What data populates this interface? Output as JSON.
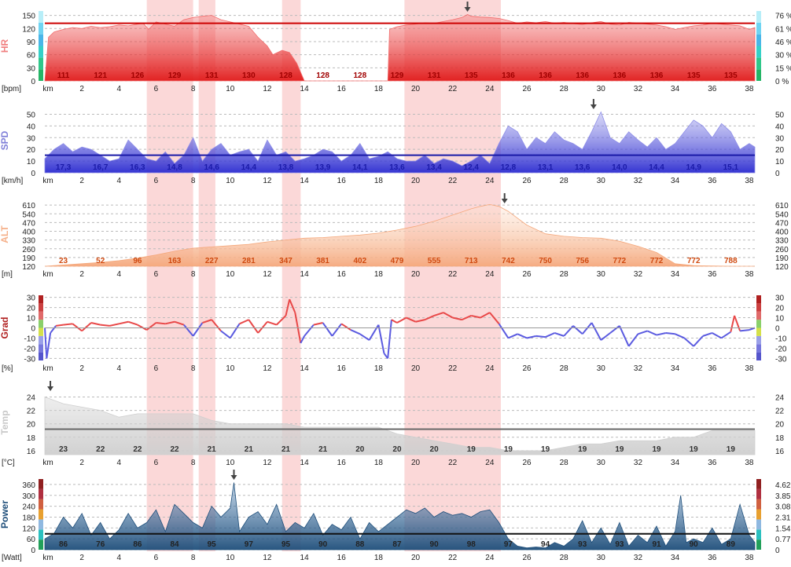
{
  "chart_data": [
    {
      "key": "hr",
      "type": "area",
      "ylabel": "HR",
      "unit": "[bpm]",
      "xlabel": "km",
      "xlim": [
        0,
        38.3
      ],
      "ylim": [
        0,
        160
      ],
      "left_ticks": [
        "0",
        "30",
        "60",
        "90",
        "120",
        "150"
      ],
      "right_ticks": [
        "0 %",
        "15 %",
        "30 %",
        "46 %",
        "61 %",
        "76 %"
      ],
      "mean_line": 132,
      "marker_km": 22.8,
      "segment_labels": [
        "111",
        "121",
        "126",
        "129",
        "131",
        "130",
        "128",
        "128",
        "128",
        "129",
        "131",
        "135",
        "136",
        "136",
        "136",
        "136",
        "136",
        "135",
        "135"
      ],
      "series": [
        {
          "x": [
            0,
            0.2,
            0.5,
            1,
            1.5,
            2,
            2.5,
            3,
            3.5,
            4,
            4.5,
            5,
            5.3,
            5.6,
            6,
            6.5,
            7,
            7.5,
            8,
            8.5,
            9,
            9.5,
            10,
            10.5,
            11,
            11.5,
            12,
            12.3,
            12.8,
            13.2,
            13.6,
            14,
            15,
            16,
            17,
            18,
            18.5,
            18.6,
            19,
            19.5,
            20,
            20.5,
            21,
            21.5,
            22,
            22.5,
            22.8,
            23,
            23.5,
            24,
            24.5,
            25,
            25.5,
            26,
            26.5,
            27,
            27.5,
            28,
            28.5,
            29,
            29.5,
            30,
            30.5,
            31,
            31.5,
            32,
            32.5,
            33,
            33.5,
            34,
            34.5,
            35,
            35.5,
            36,
            36.5,
            37,
            37.5,
            38,
            38.3
          ],
          "values": [
            0,
            100,
            112,
            118,
            122,
            120,
            125,
            122,
            124,
            128,
            126,
            130,
            132,
            118,
            135,
            130,
            125,
            140,
            145,
            148,
            150,
            140,
            135,
            130,
            125,
            100,
            80,
            60,
            70,
            65,
            40,
            0,
            0,
            0,
            0,
            0,
            0,
            118,
            124,
            128,
            130,
            133,
            132,
            136,
            140,
            145,
            152,
            148,
            146,
            145,
            143,
            138,
            132,
            135,
            133,
            136,
            132,
            134,
            131,
            129,
            133,
            136,
            130,
            128,
            134,
            132,
            130,
            128,
            124,
            118,
            122,
            126,
            128,
            132,
            130,
            128,
            126,
            118,
            122
          ]
        }
      ]
    },
    {
      "key": "spd",
      "type": "area",
      "ylabel": "SPD",
      "unit": "[km/h]",
      "xlabel": "km",
      "xlim": [
        0,
        38.3
      ],
      "ylim": [
        0,
        55
      ],
      "left_ticks": [
        "0",
        "10",
        "20",
        "30",
        "40",
        "50"
      ],
      "right_ticks": [
        "0",
        "10",
        "20",
        "30",
        "40",
        "50"
      ],
      "mean_line": 15,
      "marker_km": 29.6,
      "segment_labels": [
        "17,3",
        "16,7",
        "16,3",
        "14,8",
        "14,6",
        "14,4",
        "13,8",
        "13,9",
        "14,1",
        "13,6",
        "13,4",
        "12,4",
        "12,8",
        "13,1",
        "13,6",
        "14,0",
        "14,4",
        "14,9",
        "15,1"
      ],
      "series": [
        {
          "x": [
            0,
            0.5,
            1,
            1.5,
            2,
            2.5,
            3,
            3.5,
            4,
            4.5,
            5,
            5.5,
            6,
            6.5,
            7,
            7.5,
            8,
            8.5,
            9,
            9.5,
            10,
            10.5,
            11,
            11.5,
            12,
            12.5,
            13,
            13.5,
            14,
            14.5,
            15,
            15.5,
            16,
            16.5,
            17,
            17.5,
            18,
            18.5,
            19,
            19.5,
            20,
            20.5,
            21,
            21.5,
            22,
            22.5,
            23,
            23.5,
            24,
            24.5,
            25,
            25.5,
            26,
            26.5,
            27,
            27.5,
            28,
            28.5,
            29,
            29.5,
            30,
            30.5,
            31,
            31.5,
            32,
            32.5,
            33,
            33.5,
            34,
            34.5,
            35,
            35.5,
            36,
            36.5,
            37,
            37.5,
            38,
            38.3
          ],
          "values": [
            12,
            20,
            25,
            18,
            22,
            20,
            15,
            10,
            12,
            28,
            20,
            12,
            10,
            18,
            8,
            15,
            30,
            10,
            20,
            25,
            15,
            18,
            20,
            10,
            28,
            15,
            18,
            10,
            12,
            15,
            20,
            18,
            10,
            15,
            25,
            12,
            14,
            18,
            12,
            10,
            10,
            15,
            8,
            12,
            10,
            6,
            10,
            15,
            8,
            25,
            40,
            35,
            20,
            30,
            25,
            35,
            28,
            25,
            20,
            35,
            52,
            30,
            25,
            35,
            28,
            22,
            30,
            20,
            25,
            35,
            45,
            40,
            30,
            42,
            35,
            20,
            25,
            22
          ]
        }
      ]
    },
    {
      "key": "alt",
      "type": "area",
      "ylabel": "ALT",
      "unit": "[m]",
      "xlabel": "km",
      "xlim": [
        0,
        38.3
      ],
      "ylim": [
        120,
        630
      ],
      "left_ticks": [
        "120",
        "190",
        "260",
        "330",
        "400",
        "470",
        "540",
        "610"
      ],
      "right_ticks": [
        "120",
        "190",
        "260",
        "330",
        "400",
        "470",
        "540",
        "610"
      ],
      "marker_km": 24.8,
      "segment_labels": [
        "23",
        "52",
        "96",
        "163",
        "227",
        "281",
        "347",
        "381",
        "402",
        "479",
        "555",
        "713",
        "742",
        "750",
        "756",
        "772",
        "772",
        "772",
        "788"
      ],
      "series": [
        {
          "x": [
            0,
            1,
            2,
            3,
            4,
            5,
            6,
            7,
            8,
            9,
            10,
            11,
            12,
            13,
            14,
            15,
            16,
            17,
            18,
            19,
            20,
            21,
            22,
            23,
            23.5,
            24,
            24.5,
            25,
            26,
            27,
            28,
            29,
            30,
            31,
            32,
            33,
            34,
            35,
            36,
            37,
            38,
            38.3
          ],
          "values": [
            120,
            130,
            140,
            150,
            165,
            185,
            210,
            240,
            265,
            275,
            285,
            295,
            315,
            330,
            345,
            350,
            360,
            370,
            385,
            410,
            440,
            480,
            530,
            580,
            600,
            615,
            600,
            560,
            450,
            380,
            360,
            350,
            345,
            320,
            280,
            230,
            140,
            125,
            122,
            120,
            120,
            120
          ]
        }
      ]
    },
    {
      "key": "grad",
      "type": "line",
      "ylabel": "Grad",
      "unit": "[%]",
      "xlabel": "km",
      "xlim": [
        0,
        38.3
      ],
      "ylim": [
        -32,
        32
      ],
      "left_ticks": [
        "-30",
        "-20",
        "-10",
        "0",
        "10",
        "20",
        "30"
      ],
      "right_ticks": [
        "-30",
        "-20",
        "-10",
        "0",
        "10",
        "20",
        "30"
      ],
      "segment_labels": [],
      "series": [
        {
          "x": [
            0,
            0.1,
            0.3,
            0.6,
            1,
            1.5,
            2,
            2.5,
            3,
            3.5,
            4,
            4.5,
            5,
            5.5,
            6,
            6.5,
            7,
            7.5,
            8,
            8.5,
            9,
            9.5,
            10,
            10.5,
            11,
            11.5,
            12,
            12.5,
            13,
            13.2,
            13.5,
            13.8,
            14,
            14.5,
            15,
            15.5,
            16,
            16.5,
            17,
            17.5,
            18,
            18.3,
            18.5,
            18.7,
            19,
            19.5,
            20,
            20.5,
            21,
            21.5,
            22,
            22.5,
            23,
            23.5,
            24,
            24.5,
            25,
            25.5,
            26,
            26.5,
            27,
            27.5,
            28,
            28.5,
            29,
            29.5,
            30,
            30.5,
            31,
            31.5,
            32,
            32.5,
            33,
            33.5,
            34,
            34.5,
            35,
            35.5,
            36,
            36.5,
            37,
            37.2,
            37.5,
            38,
            38.3
          ],
          "values": [
            0,
            -30,
            -5,
            2,
            3,
            4,
            -3,
            5,
            3,
            2,
            4,
            6,
            3,
            -2,
            5,
            4,
            6,
            3,
            -8,
            5,
            8,
            -3,
            -10,
            4,
            8,
            -5,
            6,
            3,
            12,
            28,
            15,
            -15,
            -8,
            3,
            5,
            -8,
            4,
            -2,
            -6,
            -12,
            3,
            -25,
            -30,
            8,
            5,
            10,
            6,
            8,
            12,
            15,
            10,
            8,
            12,
            10,
            15,
            4,
            -10,
            -6,
            -10,
            -8,
            -9,
            -5,
            -8,
            2,
            -6,
            5,
            -12,
            -5,
            2,
            -18,
            -6,
            -3,
            -7,
            -5,
            -6,
            -10,
            -18,
            -8,
            -5,
            -10,
            -4,
            12,
            -3,
            -2,
            0
          ]
        }
      ]
    },
    {
      "key": "temp",
      "type": "area",
      "ylabel": "Temp",
      "unit": "[°C]",
      "xlabel": "km",
      "xlim": [
        0,
        38.3
      ],
      "ylim": [
        15.4,
        25
      ],
      "left_ticks": [
        "16",
        "18",
        "20",
        "22",
        "24"
      ],
      "right_ticks": [
        "16",
        "18",
        "20",
        "22",
        "24"
      ],
      "mean_line": 19.2,
      "marker_km": 0.3,
      "segment_labels": [
        "23",
        "22",
        "22",
        "22",
        "21",
        "21",
        "21",
        "21",
        "20",
        "20",
        "20",
        "19",
        "19",
        "19",
        "19",
        "19",
        "19",
        "19",
        "19"
      ],
      "series": [
        {
          "x": [
            0,
            1,
            2,
            3,
            4,
            5,
            6,
            7,
            8,
            9,
            10,
            11,
            12,
            13,
            14,
            15,
            16,
            17,
            18,
            19,
            20,
            21,
            22,
            23,
            24,
            25,
            26,
            27,
            28,
            29,
            30,
            31,
            32,
            33,
            34,
            35,
            36,
            37,
            38,
            38.3
          ],
          "values": [
            24,
            23,
            22.5,
            22,
            21,
            21.5,
            21.5,
            21.5,
            21.5,
            20.5,
            20,
            20,
            20,
            20,
            19.5,
            19.5,
            19.5,
            19.5,
            19.5,
            18.5,
            18,
            17.5,
            17,
            16.5,
            16.5,
            16,
            16,
            16,
            16.5,
            17,
            17,
            17.5,
            17.5,
            17.5,
            18,
            18,
            19,
            19,
            19,
            19
          ]
        }
      ]
    },
    {
      "key": "pow",
      "type": "area",
      "ylabel": "Power",
      "unit": "[Watt]",
      "xlabel": "km",
      "xlim": [
        0,
        38.3
      ],
      "ylim": [
        0,
        390
      ],
      "left_ticks": [
        "0",
        "60",
        "120",
        "180",
        "240",
        "300",
        "360"
      ],
      "right_ticks": [
        "0",
        "0.77",
        "1.54",
        "2.31",
        "3.08",
        "3.85",
        "4.62"
      ],
      "mean_line": 88,
      "marker_km": 10.2,
      "segment_labels": [
        "86",
        "76",
        "86",
        "84",
        "95",
        "97",
        "95",
        "90",
        "88",
        "87",
        "90",
        "98",
        "97",
        "94",
        "93",
        "93",
        "91",
        "90",
        "89"
      ],
      "series": [
        {
          "x": [
            0,
            0.5,
            1,
            1.5,
            2,
            2.5,
            3,
            3.5,
            4,
            4.5,
            5,
            5.5,
            6,
            6.5,
            7,
            7.5,
            8,
            8.5,
            9,
            9.5,
            10,
            10.2,
            10.5,
            11,
            11.5,
            12,
            12.5,
            13,
            13.5,
            14,
            14.5,
            15,
            15.5,
            16,
            16.5,
            17,
            17.5,
            18,
            18.5,
            19,
            19.5,
            20,
            20.5,
            21,
            21.5,
            22,
            22.5,
            23,
            23.5,
            24,
            24.5,
            25,
            25.5,
            26,
            26.5,
            27,
            27.5,
            28,
            28.5,
            29,
            29.5,
            30,
            30.5,
            31,
            31.5,
            32,
            32.5,
            33,
            33.5,
            34,
            34.3,
            34.6,
            35,
            35.5,
            36,
            36.5,
            37,
            37.5,
            38,
            38.3
          ],
          "values": [
            60,
            90,
            180,
            120,
            200,
            80,
            150,
            60,
            110,
            200,
            120,
            150,
            220,
            100,
            250,
            200,
            150,
            120,
            240,
            180,
            230,
            370,
            100,
            180,
            210,
            140,
            250,
            100,
            150,
            120,
            200,
            80,
            140,
            110,
            180,
            60,
            150,
            100,
            140,
            180,
            220,
            200,
            230,
            180,
            210,
            190,
            200,
            180,
            210,
            220,
            150,
            60,
            20,
            10,
            15,
            10,
            40,
            20,
            60,
            160,
            40,
            120,
            30,
            150,
            20,
            80,
            40,
            130,
            20,
            100,
            300,
            40,
            60,
            40,
            120,
            30,
            60,
            250,
            80,
            40
          ]
        }
      ]
    }
  ],
  "colors": {
    "hr_fill": "#f26d6d",
    "hr_line": "#cc0000",
    "spd_fill": "#8f8fe8",
    "spd_line": "#1a1aa8",
    "alt_fill": "#f5a87c",
    "alt_text": "#d04a10",
    "grad_pos": "#e84848",
    "grad_neg": "#5b5be0",
    "temp_fill": "#cfcfcf",
    "temp_line": "#666666",
    "pow_fill": "#1e4e7a",
    "pow_line": "#111111",
    "highlight": "#f9c8c8"
  },
  "highlights_km": [
    [
      5.5,
      8.0
    ],
    [
      8.3,
      9.2
    ],
    [
      12.8,
      13.8
    ],
    [
      19.4,
      24.6
    ]
  ]
}
